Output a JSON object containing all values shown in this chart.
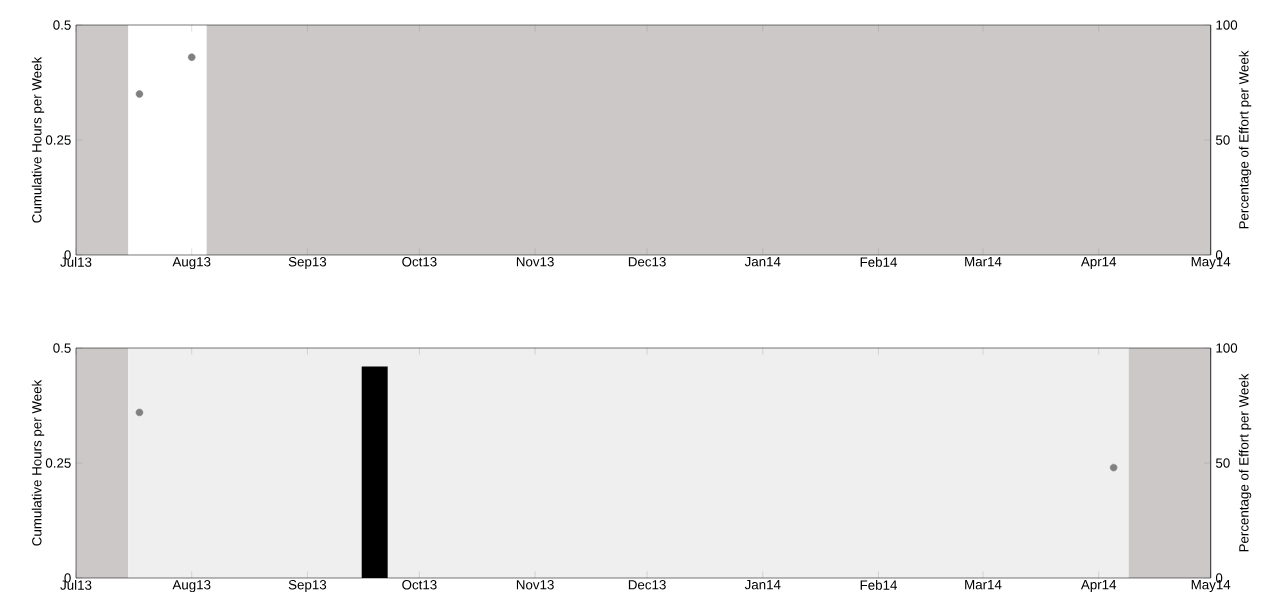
{
  "chart_data": [
    {
      "type": "scatter",
      "ylabel": "Cumulative Hours per Week",
      "y2label": "Percentage of Effort per Week",
      "xlim": [
        "2013-07-01",
        "2014-05-01"
      ],
      "xticks": [
        {
          "value": "2013-07-01",
          "label": "Jul13"
        },
        {
          "value": "2013-08-01",
          "label": "Aug13"
        },
        {
          "value": "2013-09-01",
          "label": "Sep13"
        },
        {
          "value": "2013-10-01",
          "label": "Oct13"
        },
        {
          "value": "2013-11-01",
          "label": "Nov13"
        },
        {
          "value": "2013-12-01",
          "label": "Dec13"
        },
        {
          "value": "2014-01-01",
          "label": "Jan14"
        },
        {
          "value": "2014-02-01",
          "label": "Feb14"
        },
        {
          "value": "2014-03-01",
          "label": "Mar14"
        },
        {
          "value": "2014-04-01",
          "label": "Apr14"
        },
        {
          "value": "2014-05-01",
          "label": "May14"
        }
      ],
      "ylim": [
        0,
        0.5
      ],
      "yticks": [
        0,
        0.25,
        0.5
      ],
      "y2lim": [
        0,
        100
      ],
      "y2ticks": [
        0,
        50,
        100
      ],
      "marker": "circle",
      "bands": [
        {
          "axis": "x",
          "from": "2013-07-01",
          "to": "2013-07-15",
          "color": "#ccc8c8"
        },
        {
          "axis": "x",
          "from": "2013-08-05",
          "to": "2014-05-01",
          "color": "#ccc8c8"
        }
      ],
      "series": [
        {
          "color": "#808080",
          "x": [
            "2013-07-18",
            "2013-08-01"
          ],
          "values": [
            0.35,
            0.43
          ]
        }
      ]
    },
    {
      "type": "scatter",
      "ylabel": "Cumulative Hours per Week",
      "y2label": "Percentage of Effort per Week",
      "xlim": [
        "2013-07-01",
        "2014-05-01"
      ],
      "xticks": [
        {
          "value": "2013-07-01",
          "label": "Jul13"
        },
        {
          "value": "2013-08-01",
          "label": "Aug13"
        },
        {
          "value": "2013-09-01",
          "label": "Sep13"
        },
        {
          "value": "2013-10-01",
          "label": "Oct13"
        },
        {
          "value": "2013-11-01",
          "label": "Nov13"
        },
        {
          "value": "2013-12-01",
          "label": "Dec13"
        },
        {
          "value": "2014-01-01",
          "label": "Jan14"
        },
        {
          "value": "2014-02-01",
          "label": "Feb14"
        },
        {
          "value": "2014-03-01",
          "label": "Mar14"
        },
        {
          "value": "2014-04-01",
          "label": "Apr14"
        },
        {
          "value": "2014-05-01",
          "label": "May14"
        }
      ],
      "ylim": [
        0,
        0.5
      ],
      "yticks": [
        0,
        0.25,
        0.5
      ],
      "y2lim": [
        0,
        100
      ],
      "y2ticks": [
        0,
        50,
        100
      ],
      "marker": "circle",
      "bands": [
        {
          "axis": "x",
          "from": "2013-07-01",
          "to": "2013-07-15",
          "color": "#ccc8c8"
        },
        {
          "axis": "x",
          "from": "2013-07-15",
          "to": "2014-04-09",
          "color": "#efefef"
        },
        {
          "axis": "x",
          "from": "2014-04-09",
          "to": "2014-05-01",
          "color": "#ccc8c8"
        }
      ],
      "series": [
        {
          "type": "bar",
          "color": "#000000",
          "x": [
            "2013-09-19"
          ],
          "values": [
            0.46
          ]
        },
        {
          "color": "#808080",
          "x": [
            "2013-07-18",
            "2014-04-05"
          ],
          "values": [
            0.36,
            0.24
          ]
        }
      ]
    }
  ]
}
